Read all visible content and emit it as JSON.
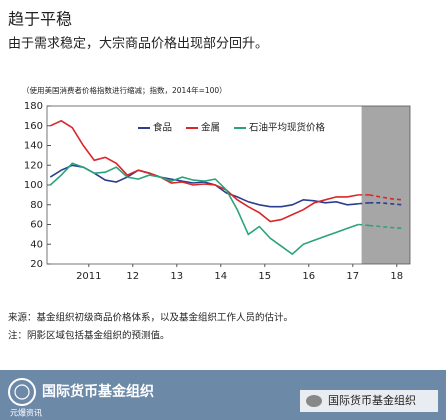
{
  "chart_data": {
    "type": "line",
    "title": "趋于平稳",
    "subtitle": "由于需求稳定，大宗商品价格出现部分回升。",
    "axis_note": "（使用美国消费者价格指数进行缩减；指数，2014年=100）",
    "x": [
      2010.625,
      2010.875,
      2011.125,
      2011.375,
      2011.625,
      2011.875,
      2012.125,
      2012.375,
      2012.625,
      2012.875,
      2013.125,
      2013.375,
      2013.625,
      2013.875,
      2014.125,
      2014.375,
      2014.625,
      2014.875,
      2015.125,
      2015.375,
      2015.625,
      2015.875,
      2016.125,
      2016.375,
      2016.625,
      2016.875,
      2017.125,
      2017.375,
      2017.625,
      2017.875,
      2018.125,
      2018.375,
      2018.625
    ],
    "series": [
      {
        "name": "食品",
        "color": "#2a3f8f",
        "values": [
          108,
          115,
          120,
          118,
          112,
          105,
          103,
          108,
          115,
          112,
          108,
          106,
          104,
          102,
          103,
          100,
          92,
          88,
          83,
          80,
          78,
          78,
          80,
          85,
          84,
          82,
          83,
          80,
          81,
          82,
          82,
          81,
          80
        ]
      },
      {
        "name": "金属",
        "color": "#d9262b",
        "values": [
          160,
          165,
          158,
          140,
          125,
          128,
          122,
          110,
          115,
          112,
          108,
          102,
          103,
          100,
          101,
          100,
          95,
          85,
          78,
          72,
          63,
          65,
          70,
          75,
          82,
          85,
          88,
          88,
          90,
          90,
          88,
          86,
          85
        ]
      },
      {
        "name": "石油平均现货价格",
        "color": "#2aa37a",
        "values": [
          100,
          110,
          122,
          118,
          112,
          113,
          118,
          108,
          106,
          110,
          108,
          104,
          108,
          105,
          104,
          106,
          95,
          75,
          50,
          58,
          46,
          38,
          30,
          40,
          44,
          48,
          52,
          56,
          60,
          59,
          58,
          57,
          56
        ]
      }
    ],
    "xlim": [
      2010.55,
      2018.8
    ],
    "xticks": [
      {
        "value": 2011.5,
        "label": "2011"
      },
      {
        "value": 2012.5,
        "label": "12"
      },
      {
        "value": 2013.5,
        "label": "13"
      },
      {
        "value": 2014.5,
        "label": "14"
      },
      {
        "value": 2015.5,
        "label": "15"
      },
      {
        "value": 2016.5,
        "label": "16"
      },
      {
        "value": 2017.5,
        "label": "17"
      },
      {
        "value": 2018.5,
        "label": "18"
      }
    ],
    "ylim": [
      20,
      180
    ],
    "yticks": [
      20,
      40,
      60,
      80,
      100,
      120,
      140,
      160,
      180
    ],
    "forecast_shade": [
      2017.7,
      2018.8
    ],
    "shade_color": "#a6a6a6",
    "legend": "top",
    "grid": false
  },
  "source": "来源：基金组织初级商品价格体系，以及基金组织工作人员的估计。",
  "note": "注：阴影区域包括基金组织的预测值。",
  "banner": {
    "org": "国际货币基金组织",
    "account": "国际货币基金组织",
    "watermark": "元爆资讯"
  }
}
